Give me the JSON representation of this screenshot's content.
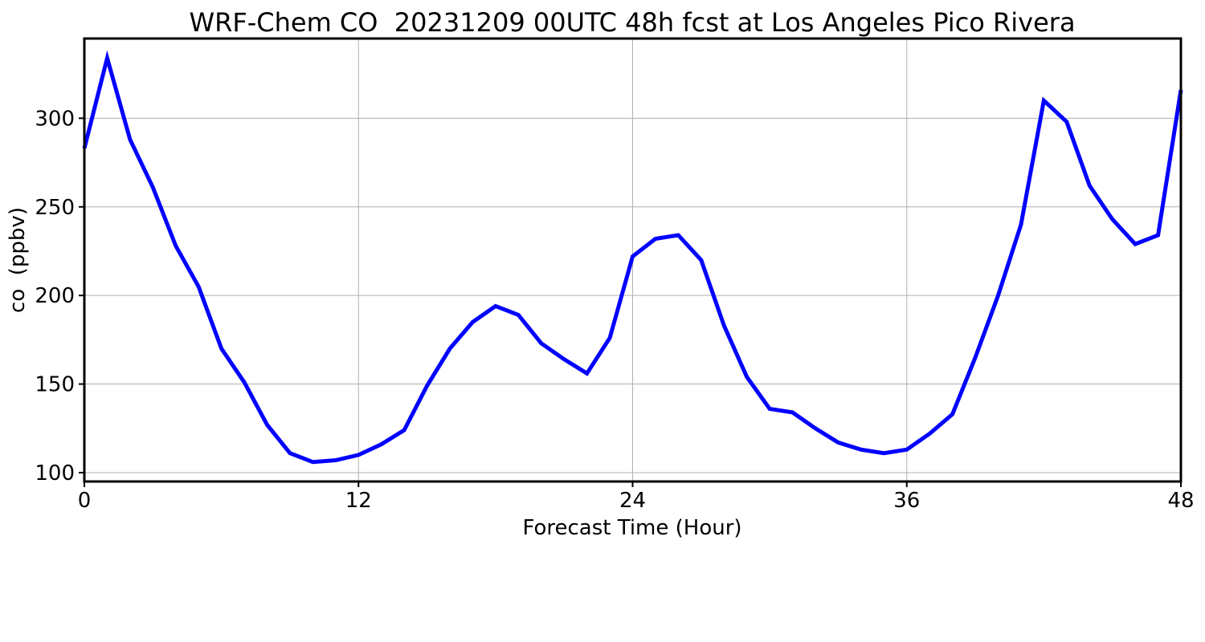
{
  "chart_data": {
    "type": "line",
    "title": "WRF-Chem CO  20231209 00UTC 48h fcst at Los Angeles Pico Rivera",
    "xlabel": "Forecast Time (Hour)",
    "ylabel": "co  (ppbv)",
    "xlim": [
      0,
      48
    ],
    "ylim": [
      95,
      345
    ],
    "xticks": [
      0,
      12,
      24,
      36,
      48
    ],
    "yticks": [
      100,
      150,
      200,
      250,
      300
    ],
    "grid": true,
    "line_color": "#0000ff",
    "series": [
      {
        "x": [
          0,
          1,
          2,
          3,
          4,
          5,
          6,
          7,
          8,
          9,
          10,
          11,
          12,
          13,
          14,
          15,
          16,
          17,
          18,
          19,
          20,
          21,
          22,
          23,
          24,
          25,
          26,
          27,
          28,
          29,
          30,
          31,
          32,
          33,
          34,
          35,
          36,
          37,
          38,
          39,
          40,
          41,
          42,
          43,
          44,
          45,
          46,
          47,
          48
        ],
        "values": [
          283,
          334,
          288,
          261,
          228,
          205,
          170,
          151,
          127,
          111,
          106,
          107,
          110,
          116,
          124,
          149,
          170,
          185,
          194,
          189,
          173,
          164,
          156,
          176,
          222,
          232,
          234,
          220,
          183,
          154,
          136,
          134,
          125,
          117,
          113,
          111,
          113,
          122,
          133,
          165,
          200,
          240,
          310,
          298,
          262,
          243,
          229,
          234,
          316
        ]
      }
    ]
  }
}
